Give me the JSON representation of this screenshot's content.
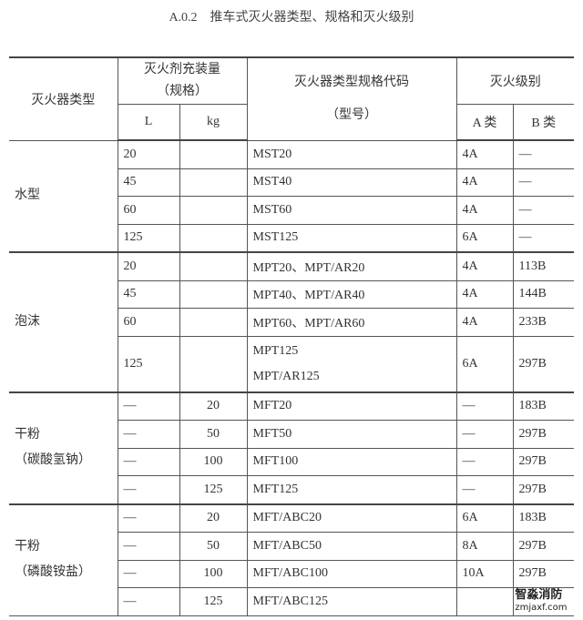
{
  "title": "A.0.2　推车式灭火器类型、规格和灭火级别",
  "header": {
    "type": "灭火器类型",
    "charge": "灭火剂充装量",
    "charge_sub": "（规格）",
    "code": "灭火器类型规格代码",
    "code_sub": "（型号）",
    "rating": "灭火级别",
    "L": "L",
    "kg": "kg",
    "A": "A 类",
    "B": "B 类"
  },
  "groups": [
    {
      "type": [
        "水型"
      ],
      "rows": [
        {
          "L": "20",
          "kg": "",
          "code": "MST20",
          "A": "4A",
          "B": "—"
        },
        {
          "L": "45",
          "kg": "",
          "code": "MST40",
          "A": "4A",
          "B": "—"
        },
        {
          "L": "60",
          "kg": "",
          "code": "MST60",
          "A": "4A",
          "B": "—"
        },
        {
          "L": "125",
          "kg": "",
          "code": "MST125",
          "A": "6A",
          "B": "—"
        }
      ]
    },
    {
      "type": [
        "泡沫"
      ],
      "rows": [
        {
          "L": "20",
          "kg": "",
          "code": "MPT20、MPT/AR20",
          "A": "4A",
          "B": "113B"
        },
        {
          "L": "45",
          "kg": "",
          "code": "MPT40、MPT/AR40",
          "A": "4A",
          "B": "144B"
        },
        {
          "L": "60",
          "kg": "",
          "code": "MPT60、MPT/AR60",
          "A": "4A",
          "B": "233B"
        },
        {
          "L": "125",
          "kg": "",
          "code": "MPT125",
          "code2": "MPT/AR125",
          "A": "6A",
          "B": "297B"
        }
      ]
    },
    {
      "type": [
        "干粉",
        "（碳酸氢钠）"
      ],
      "rows": [
        {
          "L": "—",
          "kg": "20",
          "code": "MFT20",
          "A": "—",
          "B": "183B"
        },
        {
          "L": "—",
          "kg": "50",
          "code": "MFT50",
          "A": "—",
          "B": "297B"
        },
        {
          "L": "—",
          "kg": "100",
          "code": "MFT100",
          "A": "—",
          "B": "297B"
        },
        {
          "L": "—",
          "kg": "125",
          "code": "MFT125",
          "A": "—",
          "B": "297B"
        }
      ]
    },
    {
      "type": [
        "干粉",
        "（磷酸铵盐）"
      ],
      "rows": [
        {
          "L": "—",
          "kg": "20",
          "code": "MFT/ABC20",
          "A": "6A",
          "B": "183B"
        },
        {
          "L": "—",
          "kg": "50",
          "code": "MFT/ABC50",
          "A": "8A",
          "B": "297B"
        },
        {
          "L": "—",
          "kg": "100",
          "code": "MFT/ABC100",
          "A": "10A",
          "B": "297B"
        },
        {
          "L": "—",
          "kg": "125",
          "code": "MFT/ABC125",
          "A": "",
          "B": ""
        }
      ]
    }
  ],
  "watermark": {
    "name": "智淼消防",
    "site": "zmjaxf.com"
  }
}
